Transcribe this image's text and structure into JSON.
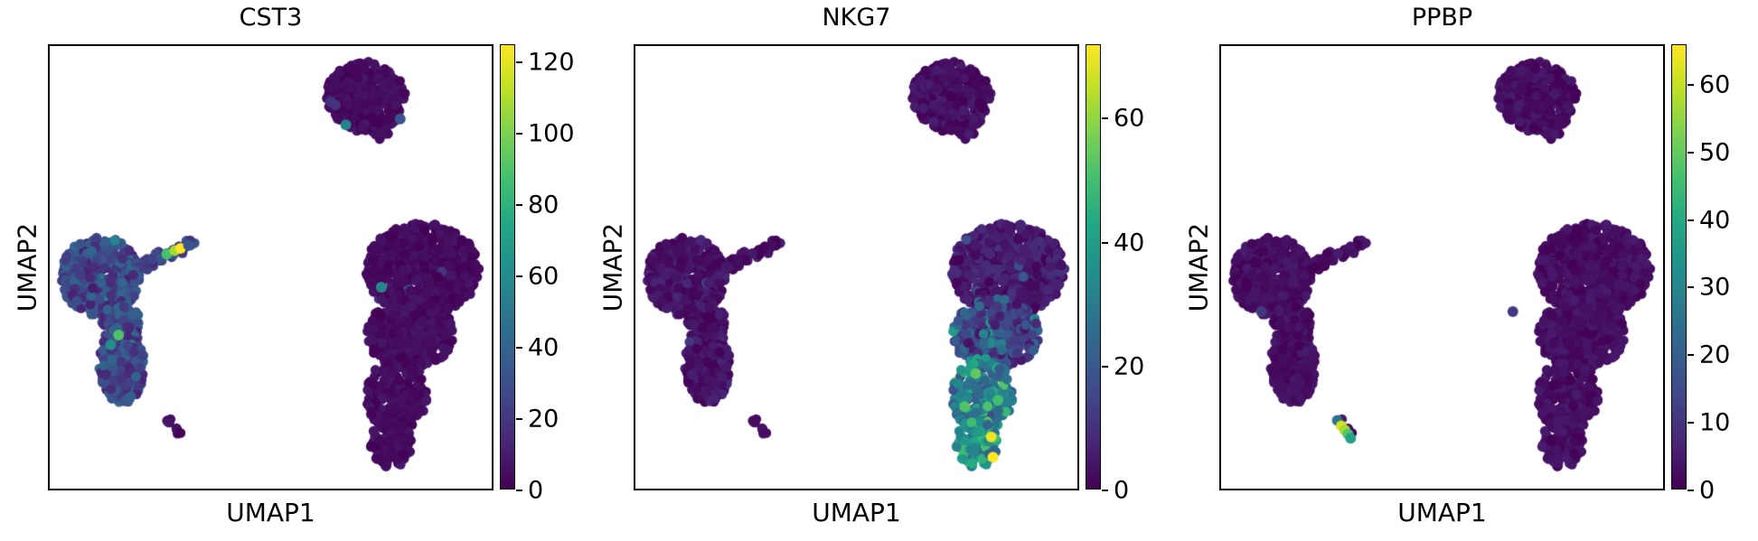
{
  "figure": {
    "background": "#ffffff"
  },
  "chart_data": {
    "type": "scatter",
    "embedding": "UMAP",
    "xlabel": "UMAP1",
    "ylabel": "UMAP2",
    "grid": false,
    "colormap": "viridis",
    "colormap_stops": [
      [
        0.0,
        "#440154"
      ],
      [
        0.1,
        "#482475"
      ],
      [
        0.2,
        "#414487"
      ],
      [
        0.3,
        "#355f8d"
      ],
      [
        0.4,
        "#2a788e"
      ],
      [
        0.5,
        "#21918c"
      ],
      [
        0.6,
        "#22a884"
      ],
      [
        0.7,
        "#44bf70"
      ],
      [
        0.8,
        "#7ad151"
      ],
      [
        0.9,
        "#bddf26"
      ],
      [
        1.0,
        "#fde725"
      ]
    ],
    "panels": [
      {
        "title": "CST3",
        "vmax": 125,
        "colorbar_ticks": [
          0,
          20,
          40,
          60,
          80,
          100,
          120
        ]
      },
      {
        "title": "NKG7",
        "vmax": 72,
        "colorbar_ticks": [
          0,
          20,
          40,
          60
        ]
      },
      {
        "title": "PPBP",
        "vmax": 66,
        "colorbar_ticks": [
          0,
          10,
          20,
          30,
          40,
          50,
          60
        ]
      }
    ],
    "clusters": [
      {
        "name": "top",
        "kind": "ellipse",
        "cx": 0.715,
        "cy": 0.115,
        "rx": 0.09,
        "ry": 0.08,
        "n": 310
      },
      {
        "name": "top_out",
        "kind": "ellipse",
        "cx": 0.73,
        "cy": 0.2,
        "rx": 0.05,
        "ry": 0.022,
        "n": 6
      },
      {
        "name": "left_main",
        "kind": "ellipse",
        "cx": 0.115,
        "cy": 0.52,
        "rx": 0.089,
        "ry": 0.089,
        "n": 420
      },
      {
        "name": "left_bridge",
        "kind": "ellipse",
        "cx": 0.16,
        "cy": 0.625,
        "rx": 0.043,
        "ry": 0.05,
        "n": 90
      },
      {
        "name": "left_lobe",
        "kind": "ellipse",
        "cx": 0.163,
        "cy": 0.72,
        "rx": 0.051,
        "ry": 0.089,
        "n": 235
      },
      {
        "name": "arm",
        "kind": "line",
        "x1": 0.205,
        "y1": 0.497,
        "x2": 0.322,
        "y2": 0.449,
        "w": 0.009,
        "n": 46
      },
      {
        "name": "right_top",
        "kind": "ellipse",
        "cx": 0.843,
        "cy": 0.505,
        "rx": 0.128,
        "ry": 0.105,
        "n": 680
      },
      {
        "name": "right_mid",
        "kind": "ellipse",
        "cx": 0.815,
        "cy": 0.65,
        "rx": 0.098,
        "ry": 0.08,
        "n": 370
      },
      {
        "name": "right_tail",
        "kind": "ellipse",
        "cx": 0.785,
        "cy": 0.79,
        "rx": 0.068,
        "ry": 0.085,
        "n": 225
      },
      {
        "name": "right_tip",
        "kind": "ellipse",
        "cx": 0.772,
        "cy": 0.898,
        "rx": 0.048,
        "ry": 0.054,
        "n": 95
      },
      {
        "name": "platelet",
        "kind": "line",
        "x1": 0.268,
        "y1": 0.845,
        "x2": 0.298,
        "y2": 0.886,
        "w": 0.004,
        "n": 9
      }
    ],
    "expression": {
      "CST3": {
        "rules": {
          "top": {
            "base": [
              0,
              8
            ],
            "sprinkle": [
              3,
              12,
              20
            ]
          },
          "top_out": {
            "base": [
              0,
              6
            ]
          },
          "left_main": {
            "base": [
              10,
              42
            ],
            "sprinkle": [
              10,
              45,
              68
            ]
          },
          "left_bridge": {
            "base": [
              10,
              40
            ],
            "sprinkle": [
              3,
              45,
              60
            ]
          },
          "left_lobe": {
            "base": [
              12,
              42
            ],
            "sprinkle": [
              8,
              44,
              62
            ]
          },
          "arm": {
            "base": [
              16,
              36
            ]
          },
          "right_top": {
            "base": [
              0,
              8
            ],
            "sprinkle": [
              5,
              18,
              30
            ]
          },
          "right_mid": {
            "base": [
              0,
              8
            ],
            "sprinkle": [
              3,
              15,
              25
            ]
          },
          "right_tail": {
            "base": [
              0,
              8
            ]
          },
          "right_tip": {
            "base": [
              0,
              8
            ]
          },
          "platelet": {
            "base": [
              0,
              8
            ]
          }
        },
        "marks": [
          [
            0.265,
            0.47,
            88
          ],
          [
            0.283,
            0.462,
            108
          ],
          [
            0.296,
            0.457,
            125
          ],
          [
            0.314,
            0.45,
            33
          ],
          [
            0.156,
            0.653,
            90
          ],
          [
            0.138,
            0.675,
            62
          ],
          [
            0.67,
            0.178,
            55
          ],
          [
            0.793,
            0.165,
            33
          ],
          [
            0.636,
            0.126,
            18
          ],
          [
            0.646,
            0.133,
            18
          ],
          [
            0.75,
            0.545,
            58
          ]
        ]
      },
      "NKG7": {
        "rules": {
          "top": {
            "base": [
              0,
              6
            ]
          },
          "top_out": {
            "base": [
              0,
              6
            ]
          },
          "left_main": {
            "base": [
              0,
              8
            ],
            "sprinkle": [
              6,
              12,
              22
            ]
          },
          "left_bridge": {
            "base": [
              0,
              7
            ]
          },
          "left_lobe": {
            "base": [
              0,
              8
            ],
            "sprinkle": [
              3,
              10,
              16
            ]
          },
          "arm": {
            "base": [
              0,
              6
            ]
          },
          "right_top": {
            "base": [
              0,
              10
            ],
            "sprinkle": [
              12,
              12,
              24
            ]
          },
          "right_mid": {
            "base": [
              3,
              26
            ],
            "sprinkle": [
              12,
              28,
              40
            ]
          },
          "right_tail": {
            "base": [
              16,
              44
            ],
            "sprinkle": [
              10,
              44,
              56
            ]
          },
          "right_tip": {
            "base": [
              22,
              50
            ],
            "sprinkle": [
              6,
              48,
              60
            ]
          },
          "platelet": {
            "base": [
              0,
              5
            ]
          }
        },
        "marks": [
          [
            0.805,
            0.883,
            70
          ],
          [
            0.809,
            0.929,
            72
          ],
          [
            0.77,
            0.74,
            54
          ],
          [
            0.745,
            0.815,
            52
          ],
          [
            0.82,
            0.8,
            50
          ]
        ]
      },
      "PPBP": {
        "rules": {
          "top": {
            "base": [
              0,
              5
            ]
          },
          "top_out": {
            "base": [
              0,
              5
            ]
          },
          "left_main": {
            "base": [
              0,
              5
            ]
          },
          "left_bridge": {
            "base": [
              0,
              5
            ]
          },
          "left_lobe": {
            "base": [
              0,
              5
            ]
          },
          "arm": {
            "base": [
              0,
              5
            ]
          },
          "right_top": {
            "base": [
              0,
              5
            ]
          },
          "right_mid": {
            "base": [
              0,
              5
            ]
          },
          "right_tail": {
            "base": [
              0,
              5
            ]
          },
          "right_tip": {
            "base": [
              0,
              5
            ]
          },
          "platelet": {
            "base": [
              0,
              5
            ]
          }
        },
        "marks": [
          [
            0.091,
            0.6,
            11
          ],
          [
            0.66,
            0.6,
            11
          ],
          [
            0.263,
            0.846,
            25
          ],
          [
            0.272,
            0.858,
            62
          ],
          [
            0.28,
            0.868,
            57
          ],
          [
            0.287,
            0.877,
            48
          ],
          [
            0.293,
            0.886,
            38
          ]
        ]
      }
    }
  }
}
